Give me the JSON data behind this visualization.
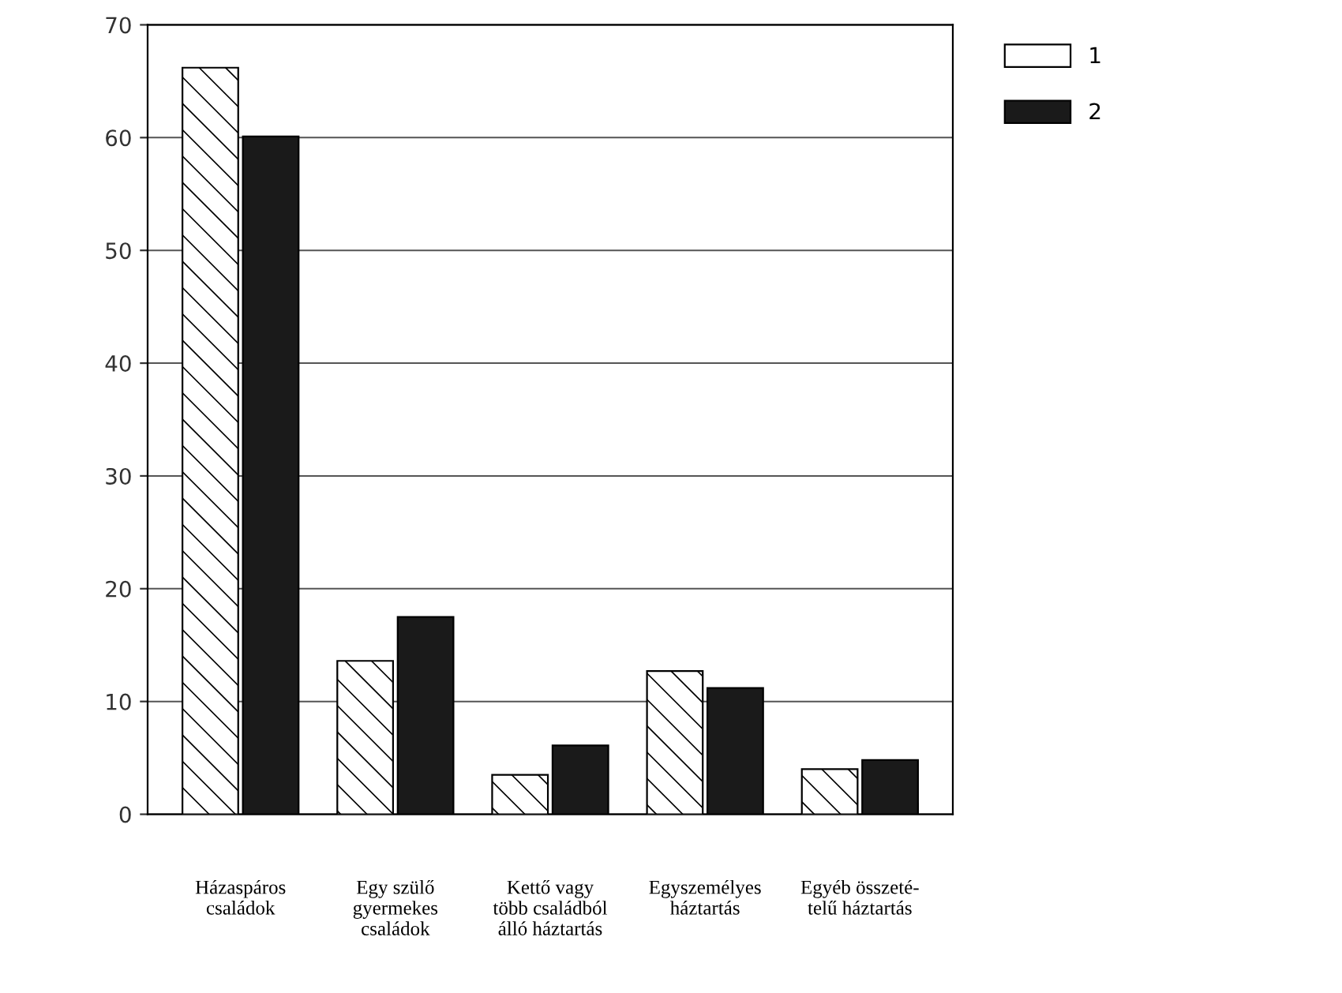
{
  "chart_data": {
    "type": "bar",
    "categories": [
      "Házaspáros\ncsaládok",
      "Egy szülő\ngyermekes\ncsaládok",
      "Kettő vagy\ntöbb családból\nálló háztartás",
      "Egyszemélyes\nháztartás",
      "Egyéb összeté-\ntelű háztartás"
    ],
    "series": [
      {
        "name": "1",
        "color": "#ffffff",
        "values": [
          66.2,
          13.6,
          3.5,
          12.7,
          4.0
        ]
      },
      {
        "name": "2",
        "color": "#1a1a1a",
        "values": [
          60.1,
          17.5,
          6.1,
          11.2,
          4.8
        ]
      }
    ],
    "ylim": [
      0,
      70
    ],
    "yticks": [
      0,
      10,
      20,
      30,
      40,
      50,
      60,
      70
    ],
    "grid": "y",
    "legend": "top right"
  }
}
